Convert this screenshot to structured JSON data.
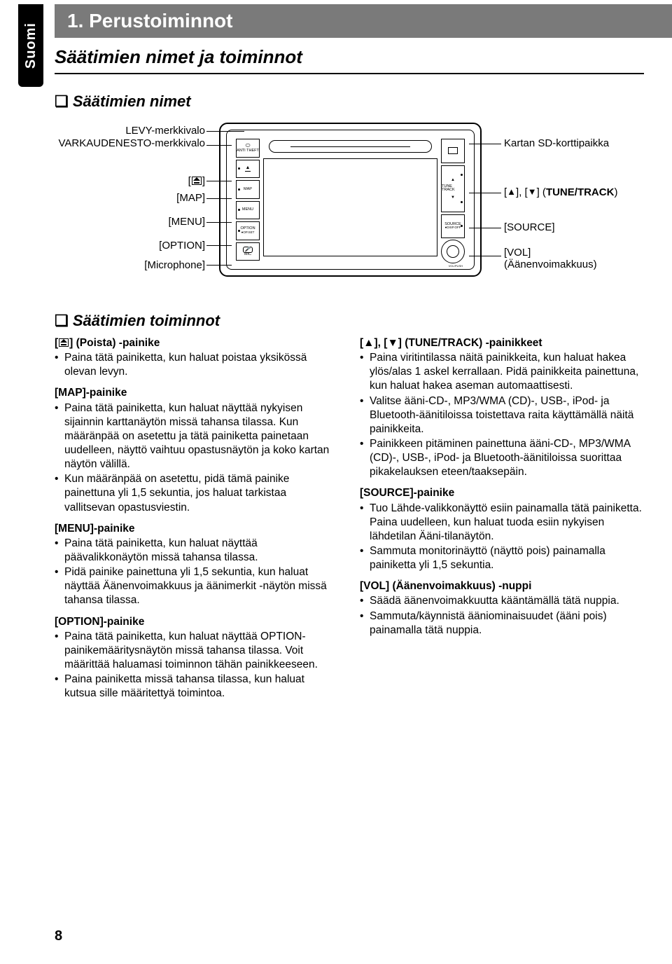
{
  "lang_tab": "Suomi",
  "header_title": "1. Perustoiminnot",
  "subtitle": "Säätimien nimet ja toiminnot",
  "section1_title": "Säätimien nimet",
  "section2_title": "Säätimien toiminnot",
  "page_number": "8",
  "diagram": {
    "left_labels": {
      "disc": "LEVY-merkkivalo",
      "theft": "VARKAUDENESTO-merkkivalo",
      "eject": "",
      "map": "[MAP]",
      "menu": "[MENU]",
      "option": "[OPTION]",
      "mic": "[Microphone]"
    },
    "right_labels": {
      "sd": "Kartan SD-korttipaikka",
      "tune": "[▲], [▼] (TUNE/TRACK)",
      "source": "[SOURCE]",
      "vol": "[VOL]",
      "vol2": "(Äänenvoimakkuus)"
    },
    "buttons": {
      "anti_theft": "ANTI THEFT",
      "eject": "▲",
      "map": "MAP",
      "menu": "MENU",
      "option": "OPTION",
      "opset": "●OP.SET",
      "mic": "MIC",
      "tune_up": "▲",
      "tune_label": "TUNE TRACK",
      "tune_dn": "▼",
      "source": "SOURCE",
      "dispoff": "●DISP.OFF",
      "vol": "VOL/PUSH"
    }
  },
  "left_col": [
    {
      "head_raw": "eject_poista",
      "bullets": [
        "Paina tätä painiketta, kun haluat poistaa yksikössä olevan levyn."
      ]
    },
    {
      "head": "[MAP]-painike",
      "bullets": [
        "Paina tätä painiketta, kun haluat näyttää nykyisen sijainnin karttanäytön missä tahansa tilassa. Kun määränpää on asetettu ja tätä painiketta painetaan uudelleen, näyttö vaihtuu opastusnäytön ja koko kartan näytön välillä.",
        "Kun määränpää on asetettu, pidä tämä painike painettuna yli 1,5 sekuntia, jos haluat tarkistaa vallitsevan opastusviestin."
      ]
    },
    {
      "head": "[MENU]-painike",
      "bullets": [
        "Paina tätä painiketta, kun haluat näyttää päävalikkonäytön missä tahansa tilassa.",
        "Pidä painike painettuna yli 1,5 sekuntia, kun haluat näyttää Äänenvoimakkuus ja äänimerkit -näytön missä tahansa tilassa."
      ]
    },
    {
      "head": "[OPTION]-painike",
      "bullets": [
        "Paina tätä painiketta, kun haluat näyttää OPTION-painikemääritysnäytön missä tahansa tilassa. Voit määrittää haluamasi toiminnon tähän painikkeeseen.",
        "Paina painiketta missä tahansa tilassa, kun haluat kutsua sille määritettyä toimintoa."
      ]
    }
  ],
  "right_col": [
    {
      "head": "[▲], [▼] (TUNE/TRACK) -painikkeet",
      "bullets": [
        "Paina viritintilassa näitä painikkeita, kun haluat hakea ylös/alas 1 askel kerrallaan. Pidä painikkeita painettuna, kun haluat hakea aseman automaattisesti.",
        "Valitse ääni-CD-, MP3/WMA (CD)-, USB-, iPod- ja Bluetooth-äänitiloissa toistettava raita käyttämällä näitä painikkeita.",
        "Painikkeen pitäminen painettuna ääni-CD-, MP3/WMA (CD)-, USB-, iPod- ja Bluetooth-äänitiloissa suorittaa pikakelauksen eteen/taaksepäin."
      ]
    },
    {
      "head": "[SOURCE]-painike",
      "bullets": [
        "Tuo Lähde-valikkonäyttö esiin painamalla tätä painiketta. Paina uudelleen, kun haluat tuoda esiin nykyisen lähdetilan Ääni-tilanäytön.",
        "Sammuta monitorinäyttö (näyttö pois) painamalla painiketta yli 1,5 sekuntia."
      ]
    },
    {
      "head": "[VOL] (Äänenvoimakkuus) -nuppi",
      "bullets": [
        "Säädä äänenvoimakkuutta kääntämällä tätä nuppia.",
        "Sammuta/käynnistä ääniominaisuudet (ääni pois) painamalla tätä nuppia."
      ]
    }
  ]
}
